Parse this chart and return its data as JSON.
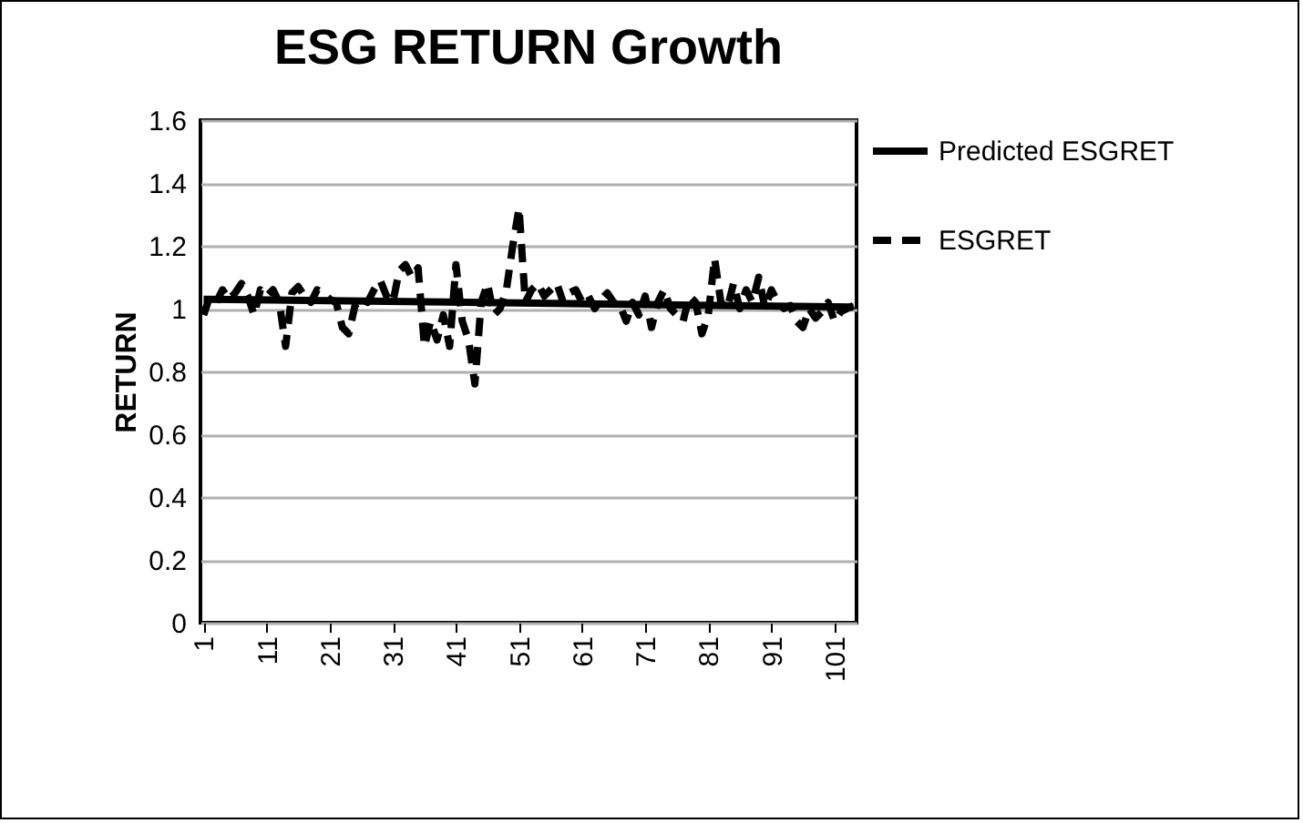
{
  "chart_data": {
    "type": "line",
    "title": "ESG RETURN Growth",
    "ylabel": "RETURN",
    "xlim": [
      0.5,
      104.5
    ],
    "xticks": [
      1,
      11,
      21,
      31,
      41,
      51,
      61,
      71,
      81,
      91,
      101
    ],
    "ylim": [
      0,
      1.6
    ],
    "yticks": [
      0,
      0.2,
      0.4,
      0.6,
      0.8,
      1,
      1.2,
      1.4,
      1.6
    ],
    "grid": "y",
    "legend": "right",
    "x": [
      1,
      2,
      3,
      4,
      5,
      6,
      7,
      8,
      9,
      10,
      11,
      12,
      13,
      14,
      15,
      16,
      17,
      18,
      19,
      20,
      21,
      22,
      23,
      24,
      25,
      26,
      27,
      28,
      29,
      30,
      31,
      32,
      33,
      34,
      35,
      36,
      37,
      38,
      39,
      40,
      41,
      42,
      43,
      44,
      45,
      46,
      47,
      48,
      49,
      50,
      51,
      52,
      53,
      54,
      55,
      56,
      57,
      58,
      59,
      60,
      61,
      62,
      63,
      64,
      65,
      66,
      67,
      68,
      69,
      70,
      71,
      72,
      73,
      74,
      75,
      76,
      77,
      78,
      79,
      80,
      81,
      82,
      83,
      84,
      85,
      86,
      87,
      88,
      89,
      90,
      91,
      92,
      93,
      94,
      95,
      96,
      97,
      98,
      99,
      100,
      101,
      102,
      103,
      104
    ],
    "series": [
      {
        "name": "Predicted ESGRET",
        "color": "#000000",
        "line_style": "solid",
        "x": [
          1,
          104
        ],
        "values": [
          1.03,
          1.005
        ]
      },
      {
        "name": "ESGRET",
        "color": "#000000",
        "line_style": "dashed",
        "values": [
          0.98,
          1.04,
          1.02,
          1.06,
          1.03,
          1.05,
          1.08,
          1.04,
          0.98,
          1.06,
          1.04,
          1.06,
          1.02,
          0.88,
          1.05,
          1.07,
          1.04,
          1.02,
          1.06,
          1.05,
          1.03,
          1.02,
          0.94,
          0.92,
          1.01,
          1.03,
          1.02,
          1.06,
          1.09,
          1.04,
          1.02,
          1.12,
          1.14,
          1.1,
          1.13,
          0.88,
          0.96,
          0.9,
          0.98,
          0.88,
          1.14,
          0.96,
          0.9,
          0.76,
          1.02,
          1.08,
          0.98,
          1.0,
          1.06,
          1.2,
          1.32,
          1.02,
          1.06,
          1.08,
          1.04,
          1.06,
          1.08,
          1.02,
          1.05,
          1.06,
          1.02,
          1.04,
          1.0,
          1.03,
          1.05,
          1.02,
          1.01,
          0.96,
          1.02,
          0.98,
          1.04,
          0.94,
          1.02,
          1.06,
          1.0,
          0.98,
          0.96,
          1.04,
          1.02,
          0.92,
          0.98,
          1.16,
          1.02,
          1.0,
          1.08,
          1.0,
          1.06,
          1.02,
          1.1,
          1.0,
          1.06,
          1.02,
          1.0,
          1.01,
          0.96,
          0.94,
          1.0,
          0.97,
          0.99,
          1.02,
          0.96,
          0.99,
          1.0,
          1.01
        ]
      }
    ]
  }
}
